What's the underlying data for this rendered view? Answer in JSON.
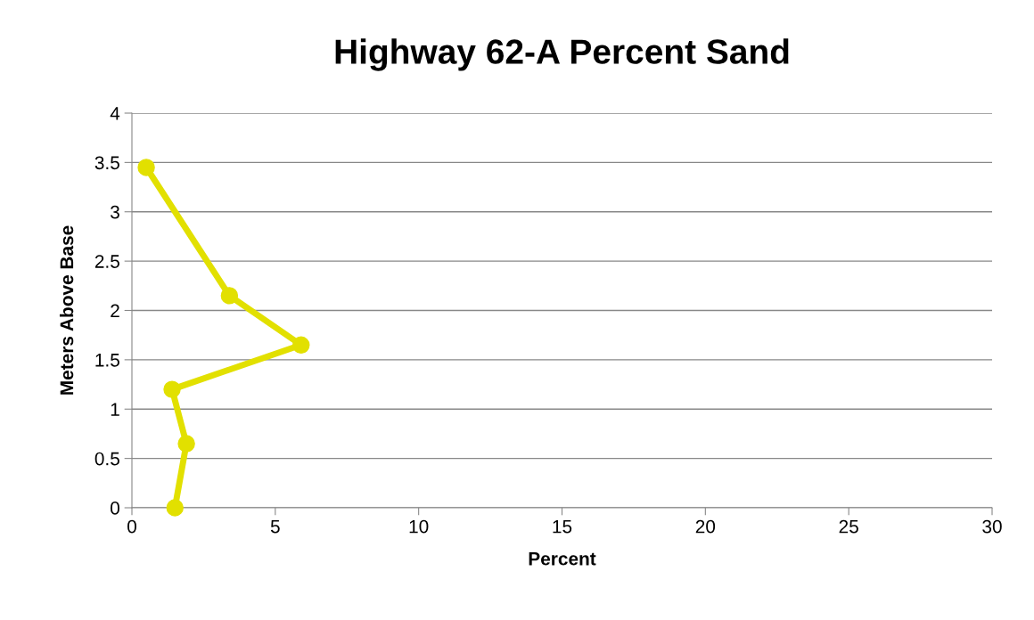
{
  "chart_data": {
    "type": "line",
    "title": "Highway 62-A Percent Sand",
    "xlabel": "Percent",
    "ylabel": "Meters Above Base",
    "series": [
      {
        "color": "#e2e000",
        "x": [
          1.5,
          1.9,
          1.4,
          5.9,
          3.4,
          0.5
        ],
        "values": [
          0,
          0.65,
          1.2,
          1.65,
          2.15,
          3.45
        ]
      }
    ],
    "xlim": [
      0,
      30
    ],
    "xticks": [
      0,
      5,
      10,
      15,
      20,
      25,
      30
    ],
    "ylim": [
      0,
      4
    ],
    "yticks": [
      0,
      0.5,
      1,
      1.5,
      2,
      2.5,
      3,
      3.5,
      4
    ],
    "grid": "y",
    "marker": "circle",
    "line_style": "solid",
    "legend": false
  }
}
